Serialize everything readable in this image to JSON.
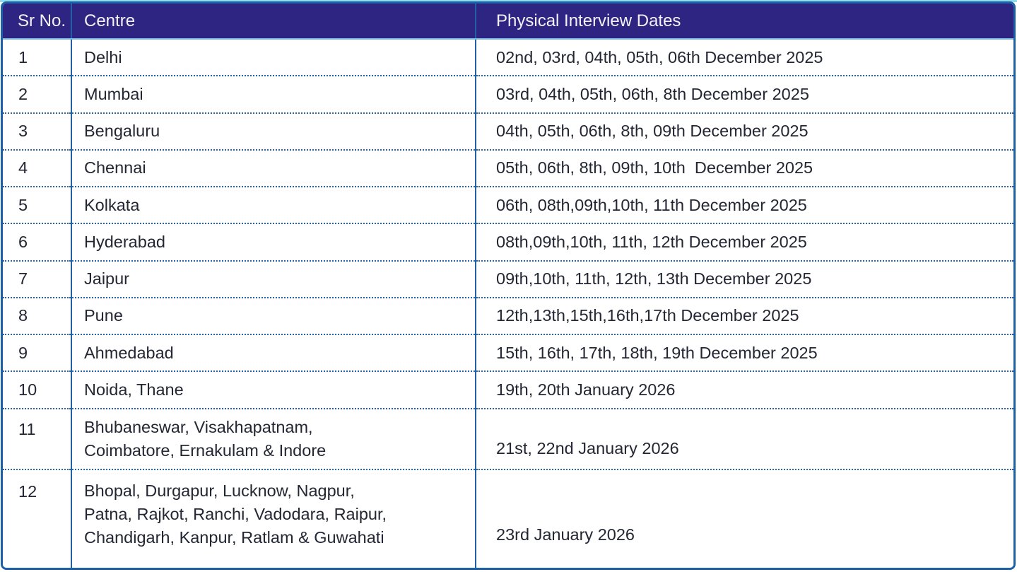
{
  "colors": {
    "header_bg": "#2e2482",
    "header_text": "#f4f1f7",
    "frame_blue": "#1c61a7",
    "divider_blue": "#2160a5",
    "dotted_blue": "#2b64a9",
    "header_underline": "#79b6d9",
    "body_text": "#232733",
    "top_strip": "#8edcec"
  },
  "table": {
    "headers": {
      "sr": "Sr No.",
      "centre": "Centre",
      "dates": "Physical Interview Dates"
    },
    "rows": [
      {
        "sr": "1",
        "centre": "Delhi",
        "dates": "02nd, 03rd, 04th, 05th, 06th December 2025"
      },
      {
        "sr": "2",
        "centre": "Mumbai",
        "dates": "03rd, 04th, 05th, 06th, 8th December 2025"
      },
      {
        "sr": "3",
        "centre": "Bengaluru",
        "dates": "04th, 05th, 06th, 8th, 09th December 2025"
      },
      {
        "sr": "4",
        "centre": "Chennai",
        "dates": "05th, 06th, 8th, 09th, 10th  December 2025"
      },
      {
        "sr": "5",
        "centre": "Kolkata",
        "dates": "06th, 08th,09th,10th, 11th December 2025"
      },
      {
        "sr": "6",
        "centre": "Hyderabad",
        "dates": "08th,09th,10th, 11th, 12th December 2025"
      },
      {
        "sr": "7",
        "centre": "Jaipur",
        "dates": "09th,10th, 11th, 12th, 13th December 2025"
      },
      {
        "sr": "8",
        "centre": "Pune",
        "dates": "12th,13th,15th,16th,17th December 2025"
      },
      {
        "sr": "9",
        "centre": "Ahmedabad",
        "dates": "15th, 16th, 17th, 18th, 19th December 2025"
      },
      {
        "sr": "10",
        "centre": "Noida, Thane",
        "dates": "19th, 20th January 2026"
      },
      {
        "sr": "11",
        "centre": "Bhubaneswar, Visakhapatnam,\nCoimbatore, Ernakulam & Indore",
        "dates": "21st, 22nd January 2026"
      },
      {
        "sr": "12",
        "centre": "Bhopal, Durgapur, Lucknow, Nagpur,\nPatna, Rajkot, Ranchi, Vadodara, Raipur,\nChandigarh, Kanpur, Ratlam & Guwahati",
        "dates": "23rd January 2026"
      }
    ]
  }
}
